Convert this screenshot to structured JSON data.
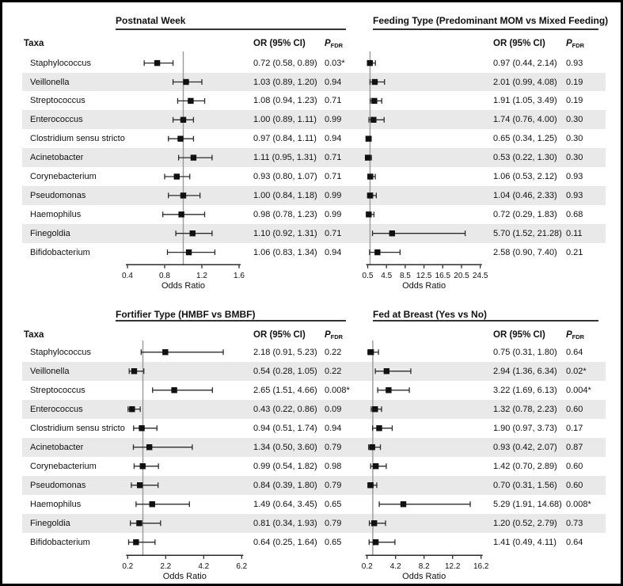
{
  "figure": {
    "taxa_header": "Taxa",
    "or_header": "OR (95% CI)",
    "p_header_main": "P",
    "p_header_sub": "FDR",
    "axis_label": "Odds Ratio",
    "colors": {
      "stripe": "#e9e9e9",
      "marker": "#111111",
      "whisker": "#2b2b2b",
      "ref_line": "#9a9a9a",
      "axis": "#2b2b2b",
      "text": "#111111"
    }
  },
  "chart_data": [
    {
      "type": "forest",
      "title": "Postnatal Week",
      "xlabel": "Odds Ratio",
      "ticks": [
        0.4,
        0.8,
        1.2,
        1.6
      ],
      "ref_line": 1.0,
      "categories": [
        "Staphylococcus",
        "Veillonella",
        "Streptococcus",
        "Enterococcus",
        "Clostridium sensu stricto",
        "Acinetobacter",
        "Corynebacterium",
        "Pseudomonas",
        "Haemophilus",
        "Finegoldia",
        "Bifidobacterium"
      ],
      "or": [
        0.72,
        1.03,
        1.08,
        1.0,
        0.97,
        1.11,
        0.93,
        1.0,
        0.98,
        1.1,
        1.06
      ],
      "ci_low": [
        0.58,
        0.89,
        0.94,
        0.89,
        0.84,
        0.95,
        0.8,
        0.84,
        0.78,
        0.92,
        0.83
      ],
      "ci_high": [
        0.89,
        1.2,
        1.23,
        1.11,
        1.11,
        1.31,
        1.07,
        1.18,
        1.23,
        1.31,
        1.34
      ],
      "or_text": [
        "0.72 (0.58, 0.89)",
        "1.03 (0.89, 1.20)",
        "1.08 (0.94, 1.23)",
        "1.00 (0.89, 1.11)",
        "0.97 (0.84, 1.11)",
        "1.11 (0.95, 1.31)",
        "0.93 (0.80, 1.07)",
        "1.00 (0.84, 1.18)",
        "0.98 (0.78, 1.23)",
        "1.10 (0.92, 1.31)",
        "1.06 (0.83, 1.34)"
      ],
      "p_fdr": [
        "0.03*",
        "0.94",
        "0.71",
        "0.99",
        "0.94",
        "0.71",
        "0.71",
        "0.99",
        "0.99",
        "0.71",
        "0.94"
      ]
    },
    {
      "type": "forest",
      "title": "Feeding Type (Predominant MOM vs Mixed Feeding)",
      "xlabel": "Odds Ratio",
      "ticks": [
        0.5,
        4.5,
        8.5,
        12.5,
        16.5,
        20.5,
        24.5
      ],
      "ref_line": 1.0,
      "categories": [
        "Staphylococcus",
        "Veillonella",
        "Streptococcus",
        "Enterococcus",
        "Clostridium sensu stricto",
        "Acinetobacter",
        "Corynebacterium",
        "Pseudomonas",
        "Haemophilus",
        "Finegoldia",
        "Bifidobacterium"
      ],
      "or": [
        0.97,
        2.01,
        1.91,
        1.74,
        0.65,
        0.53,
        1.06,
        1.04,
        0.72,
        5.7,
        2.58
      ],
      "ci_low": [
        0.44,
        0.99,
        1.05,
        0.76,
        0.34,
        0.22,
        0.53,
        0.46,
        0.29,
        1.52,
        0.9
      ],
      "ci_high": [
        2.14,
        4.08,
        3.49,
        4.0,
        1.25,
        1.3,
        2.12,
        2.33,
        1.83,
        21.28,
        7.4
      ],
      "or_text": [
        "0.97 (0.44, 2.14)",
        "2.01 (0.99, 4.08)",
        "1.91 (1.05, 3.49)",
        "1.74 (0.76, 4.00)",
        "0.65 (0.34, 1.25)",
        "0.53 (0.22, 1.30)",
        "1.06 (0.53, 2.12)",
        "1.04 (0.46, 2.33)",
        "0.72 (0.29, 1.83)",
        "5.70 (1.52, 21.28)",
        "2.58 (0.90, 7.40)"
      ],
      "p_fdr": [
        "0.93",
        "0.19",
        "0.19",
        "0.30",
        "0.30",
        "0.30",
        "0.93",
        "0.93",
        "0.68",
        "0.11",
        "0.21"
      ]
    },
    {
      "type": "forest",
      "title": "Fortifier Type (HMBF vs BMBF)",
      "xlabel": "Odds Ratio",
      "ticks": [
        0.2,
        2.2,
        4.2,
        6.2
      ],
      "ref_line": 1.0,
      "categories": [
        "Staphylococcus",
        "Veillonella",
        "Streptococcus",
        "Enterococcus",
        "Clostridium sensu stricto",
        "Acinetobacter",
        "Corynebacterium",
        "Pseudomonas",
        "Haemophilus",
        "Finegoldia",
        "Bifidobacterium"
      ],
      "or": [
        2.18,
        0.54,
        2.65,
        0.43,
        0.94,
        1.34,
        0.99,
        0.84,
        1.49,
        0.81,
        0.64
      ],
      "ci_low": [
        0.91,
        0.28,
        1.51,
        0.22,
        0.51,
        0.5,
        0.54,
        0.39,
        0.64,
        0.34,
        0.25
      ],
      "ci_high": [
        5.23,
        1.05,
        4.66,
        0.86,
        1.74,
        3.6,
        1.82,
        1.8,
        3.45,
        1.93,
        1.64
      ],
      "or_text": [
        "2.18 (0.91, 5.23)",
        "0.54 (0.28, 1.05)",
        "2.65 (1.51, 4.66)",
        "0.43 (0.22, 0.86)",
        "0.94 (0.51, 1.74)",
        "1.34 (0.50, 3.60)",
        "0.99 (0.54, 1.82)",
        "0.84 (0.39, 1.80)",
        "1.49 (0.64, 3.45)",
        "0.81 (0.34, 1.93)",
        "0.64 (0.25, 1.64)"
      ],
      "p_fdr": [
        "0.22",
        "0.22",
        "0.008*",
        "0.09",
        "0.94",
        "0.79",
        "0.98",
        "0.79",
        "0.65",
        "0.79",
        "0.65"
      ]
    },
    {
      "type": "forest",
      "title": "Fed at Breast (Yes vs No)",
      "xlabel": "Odds Ratio",
      "ticks": [
        0.2,
        4.2,
        8.2,
        12.2,
        16.2
      ],
      "ref_line": 1.0,
      "categories": [
        "Staphylococcus",
        "Veillonella",
        "Streptococcus",
        "Enterococcus",
        "Clostridium sensu stricto",
        "Acinetobacter",
        "Corynebacterium",
        "Pseudomonas",
        "Haemophilus",
        "Finegoldia",
        "Bifidobacterium"
      ],
      "or": [
        0.75,
        2.94,
        3.22,
        1.32,
        1.9,
        0.93,
        1.42,
        0.7,
        5.29,
        1.2,
        1.41
      ],
      "ci_low": [
        0.31,
        1.36,
        1.69,
        0.78,
        0.97,
        0.42,
        0.7,
        0.31,
        1.91,
        0.52,
        0.49
      ],
      "ci_high": [
        1.8,
        6.34,
        6.13,
        2.23,
        3.73,
        2.07,
        2.89,
        1.56,
        14.68,
        2.79,
        4.11
      ],
      "or_text": [
        "0.75 (0.31, 1.80)",
        "2.94 (1.36, 6.34)",
        "3.22 (1.69, 6.13)",
        "1.32 (0.78, 2.23)",
        "1.90 (0.97, 3.73)",
        "0.93 (0.42, 2.07)",
        "1.42 (0.70, 2.89)",
        "0.70 (0.31, 1.56)",
        "5.29 (1.91, 14.68)",
        "1.20 (0.52, 2.79)",
        "1.41 (0.49, 4.11)"
      ],
      "p_fdr": [
        "0.64",
        "0.02*",
        "0.004*",
        "0.60",
        "0.17",
        "0.87",
        "0.60",
        "0.60",
        "0.008*",
        "0.73",
        "0.64"
      ]
    }
  ]
}
